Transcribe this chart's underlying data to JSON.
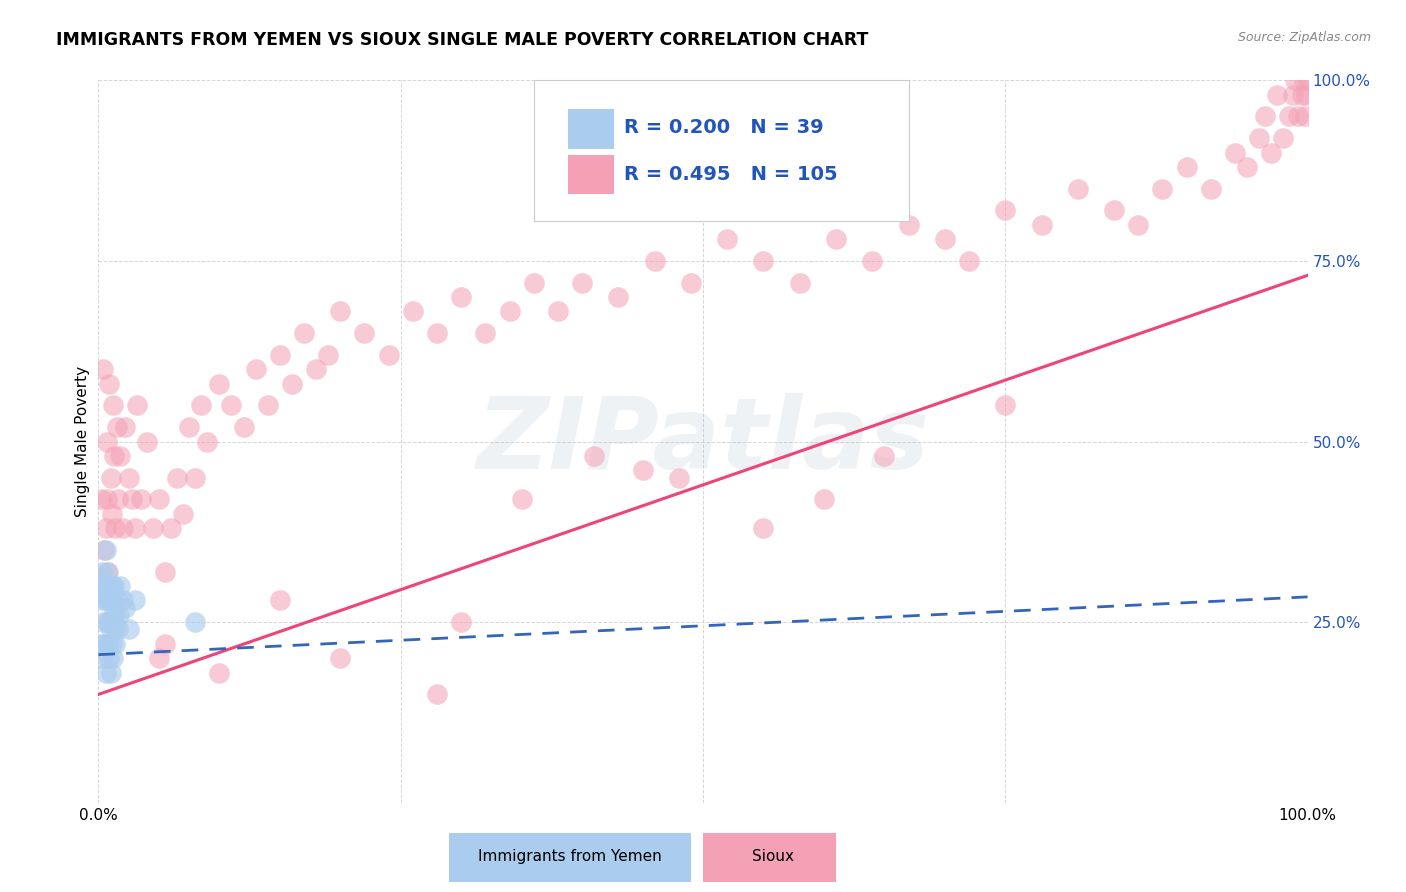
{
  "title": "IMMIGRANTS FROM YEMEN VS SIOUX SINGLE MALE POVERTY CORRELATION CHART",
  "source": "Source: ZipAtlas.com",
  "ylabel": "Single Male Poverty",
  "ytick_labels": [
    "",
    "25.0%",
    "50.0%",
    "75.0%",
    "100.0%"
  ],
  "ytick_values": [
    0.0,
    0.25,
    0.5,
    0.75,
    1.0
  ],
  "xtick_labels": [
    "0.0%",
    "",
    "",
    "",
    "100.0%"
  ],
  "xtick_values": [
    0.0,
    0.25,
    0.5,
    0.75,
    1.0
  ],
  "legend_blue_r": "0.200",
  "legend_blue_n": "39",
  "legend_pink_r": "0.495",
  "legend_pink_n": "105",
  "legend_blue_label": "Immigrants from Yemen",
  "legend_pink_label": "Sioux",
  "blue_fill_color": "#AACCEE",
  "pink_fill_color": "#F4A0B5",
  "blue_edge_color": "#6699CC",
  "pink_edge_color": "#EE8899",
  "blue_line_color": "#3366BB",
  "pink_line_color": "#EE4477",
  "legend_text_color": "#2255BB",
  "watermark_color": "#AABBCC",
  "background_color": "#FFFFFF",
  "grid_color": "#CCCCCC",
  "blue_points_x": [
    0.001,
    0.002,
    0.003,
    0.003,
    0.004,
    0.004,
    0.005,
    0.005,
    0.006,
    0.006,
    0.006,
    0.007,
    0.007,
    0.008,
    0.008,
    0.008,
    0.009,
    0.009,
    0.01,
    0.01,
    0.01,
    0.011,
    0.011,
    0.012,
    0.012,
    0.012,
    0.013,
    0.013,
    0.014,
    0.014,
    0.015,
    0.016,
    0.017,
    0.018,
    0.02,
    0.022,
    0.025,
    0.03,
    0.08
  ],
  "blue_points_y": [
    0.22,
    0.3,
    0.28,
    0.32,
    0.25,
    0.2,
    0.3,
    0.22,
    0.35,
    0.28,
    0.18,
    0.32,
    0.25,
    0.3,
    0.22,
    0.28,
    0.25,
    0.2,
    0.28,
    0.24,
    0.18,
    0.3,
    0.22,
    0.26,
    0.2,
    0.28,
    0.24,
    0.3,
    0.22,
    0.26,
    0.28,
    0.24,
    0.26,
    0.3,
    0.28,
    0.27,
    0.24,
    0.28,
    0.25
  ],
  "pink_points_x": [
    0.002,
    0.004,
    0.005,
    0.006,
    0.007,
    0.007,
    0.008,
    0.009,
    0.01,
    0.011,
    0.012,
    0.013,
    0.014,
    0.015,
    0.016,
    0.018,
    0.02,
    0.022,
    0.025,
    0.028,
    0.03,
    0.032,
    0.035,
    0.04,
    0.045,
    0.05,
    0.055,
    0.06,
    0.065,
    0.07,
    0.075,
    0.08,
    0.085,
    0.09,
    0.1,
    0.11,
    0.12,
    0.13,
    0.14,
    0.15,
    0.16,
    0.17,
    0.18,
    0.19,
    0.2,
    0.22,
    0.24,
    0.26,
    0.28,
    0.3,
    0.32,
    0.34,
    0.36,
    0.38,
    0.4,
    0.43,
    0.46,
    0.49,
    0.52,
    0.55,
    0.58,
    0.61,
    0.64,
    0.67,
    0.7,
    0.72,
    0.75,
    0.78,
    0.81,
    0.84,
    0.86,
    0.88,
    0.9,
    0.92,
    0.94,
    0.95,
    0.96,
    0.965,
    0.97,
    0.975,
    0.98,
    0.985,
    0.988,
    0.99,
    0.992,
    0.995,
    0.997,
    0.998,
    0.999,
    1.0,
    0.055,
    0.2,
    0.28,
    0.35,
    0.41,
    0.48,
    0.05,
    0.15,
    0.1,
    0.3,
    0.45,
    0.55,
    0.6,
    0.65,
    0.75
  ],
  "pink_points_y": [
    0.42,
    0.6,
    0.35,
    0.38,
    0.5,
    0.42,
    0.32,
    0.58,
    0.45,
    0.4,
    0.55,
    0.48,
    0.38,
    0.52,
    0.42,
    0.48,
    0.38,
    0.52,
    0.45,
    0.42,
    0.38,
    0.55,
    0.42,
    0.5,
    0.38,
    0.42,
    0.32,
    0.38,
    0.45,
    0.4,
    0.52,
    0.45,
    0.55,
    0.5,
    0.58,
    0.55,
    0.52,
    0.6,
    0.55,
    0.62,
    0.58,
    0.65,
    0.6,
    0.62,
    0.68,
    0.65,
    0.62,
    0.68,
    0.65,
    0.7,
    0.65,
    0.68,
    0.72,
    0.68,
    0.72,
    0.7,
    0.75,
    0.72,
    0.78,
    0.75,
    0.72,
    0.78,
    0.75,
    0.8,
    0.78,
    0.75,
    0.82,
    0.8,
    0.85,
    0.82,
    0.8,
    0.85,
    0.88,
    0.85,
    0.9,
    0.88,
    0.92,
    0.95,
    0.9,
    0.98,
    0.92,
    0.95,
    0.98,
    1.0,
    0.95,
    0.98,
    1.0,
    0.95,
    0.98,
    1.0,
    0.22,
    0.2,
    0.15,
    0.42,
    0.48,
    0.45,
    0.2,
    0.28,
    0.18,
    0.25,
    0.46,
    0.38,
    0.42,
    0.48,
    0.55
  ],
  "blue_line_start_y": 0.205,
  "blue_line_end_y": 0.285,
  "pink_line_start_y": 0.15,
  "pink_line_end_y": 0.73
}
